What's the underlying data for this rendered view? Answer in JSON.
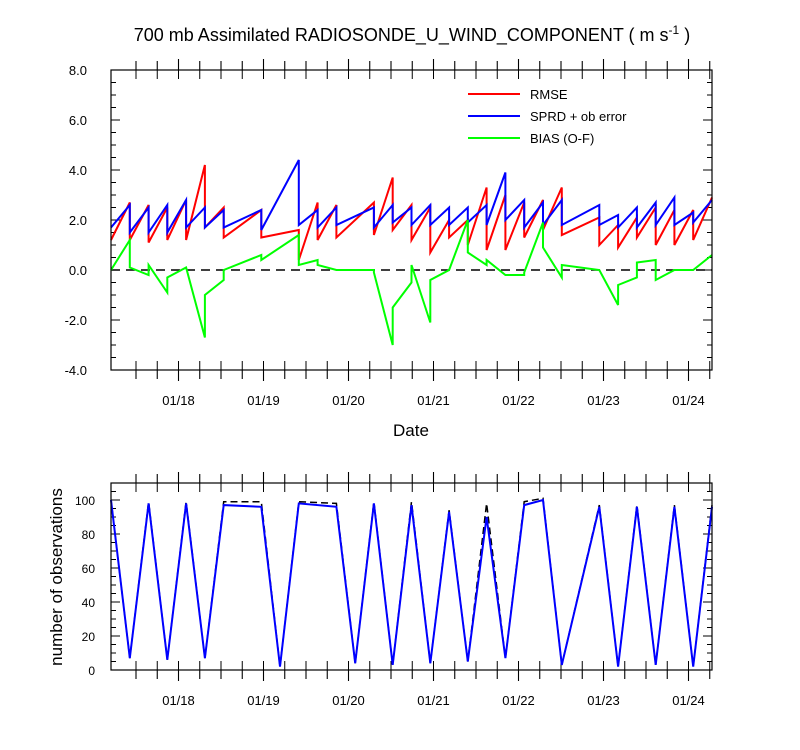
{
  "chart_data": [
    {
      "type": "line",
      "title_main": "700 mb Assimilated RADIOSONDE_U_WIND_COMPONENT ( m s",
      "title_sup": "-1",
      "title_end": " )",
      "xlabel": "Date",
      "ylabel": "",
      "ylim": [
        -4.0,
        8.0
      ],
      "y_tick_labels": [
        "-4.0",
        "-2.0",
        "0.0",
        "2.0",
        "4.0",
        "6.0",
        "8.0"
      ],
      "x_tick_labels": [
        "01/18",
        "01/19",
        "01/20",
        "01/21",
        "01/22",
        "01/23",
        "01/24"
      ],
      "legend_position": "top-right",
      "reference_line": 0.0,
      "series": [
        {
          "name": "RMSE",
          "color": "#ff0000",
          "x": [
            0,
            0.25,
            0.25,
            0.5,
            0.5,
            0.75,
            0.75,
            1.0,
            1.0,
            1.25,
            1.25,
            1.5,
            1.5,
            2.0,
            2.0,
            2.5,
            2.5,
            2.75,
            2.75,
            3.0,
            3.0,
            3.5,
            3.5,
            3.75,
            3.75,
            4.0,
            4.0,
            4.25,
            4.25,
            4.5,
            4.5,
            4.75,
            4.75,
            5.0,
            5.0,
            5.25,
            5.25,
            5.5,
            5.5,
            5.75,
            5.75,
            6.0,
            6.0,
            6.5,
            6.5,
            6.75,
            6.75,
            7.0,
            7.0,
            7.25,
            7.25,
            7.5,
            7.5,
            7.75,
            7.75,
            8.0
          ],
          "y": [
            1.2,
            2.7,
            1.2,
            2.6,
            1.1,
            2.5,
            1.2,
            2.8,
            1.2,
            4.2,
            1.7,
            2.5,
            1.3,
            2.4,
            1.3,
            1.6,
            0.4,
            2.7,
            1.2,
            2.6,
            1.3,
            2.7,
            1.4,
            3.7,
            1.6,
            2.6,
            1.2,
            2.5,
            0.7,
            2.0,
            1.3,
            2.0,
            1.0,
            3.3,
            0.8,
            3.0,
            0.8,
            2.7,
            1.3,
            2.8,
            1.6,
            3.3,
            1.4,
            2.1,
            1.0,
            1.8,
            0.9,
            2.1,
            1.3,
            2.5,
            1.0,
            2.4,
            1.0,
            2.4,
            1.2,
            2.9
          ]
        },
        {
          "name": "SPRD + ob error",
          "color": "#0000ff",
          "x": [
            0,
            0.25,
            0.25,
            0.5,
            0.5,
            0.75,
            0.75,
            1.0,
            1.0,
            1.25,
            1.25,
            1.5,
            1.5,
            2.0,
            2.0,
            2.5,
            2.5,
            2.75,
            2.75,
            3.0,
            3.0,
            3.5,
            3.5,
            3.75,
            3.75,
            4.0,
            4.0,
            4.25,
            4.25,
            4.5,
            4.5,
            4.75,
            4.75,
            5.0,
            5.0,
            5.25,
            5.25,
            5.5,
            5.5,
            5.75,
            5.75,
            6.0,
            6.0,
            6.5,
            6.5,
            6.75,
            6.75,
            7.0,
            7.0,
            7.25,
            7.25,
            7.5,
            7.5,
            7.75,
            7.75,
            8.0
          ],
          "y": [
            1.7,
            2.6,
            1.5,
            2.5,
            1.5,
            2.6,
            1.5,
            2.8,
            1.7,
            2.5,
            1.7,
            2.4,
            1.7,
            2.4,
            1.6,
            4.4,
            1.8,
            2.4,
            1.7,
            2.5,
            1.8,
            2.5,
            1.7,
            2.6,
            1.9,
            2.5,
            1.8,
            2.6,
            1.8,
            2.5,
            1.8,
            2.5,
            1.9,
            2.6,
            1.8,
            3.9,
            2.0,
            2.8,
            1.7,
            2.7,
            1.8,
            2.8,
            1.8,
            2.6,
            1.8,
            2.2,
            1.7,
            2.5,
            1.7,
            2.7,
            1.8,
            2.9,
            1.8,
            2.3,
            1.9,
            2.8
          ]
        },
        {
          "name": "BIAS (O-F)",
          "color": "#00ff00",
          "x": [
            0,
            0.25,
            0.25,
            0.5,
            0.5,
            0.75,
            0.75,
            1.0,
            1.0,
            1.25,
            1.25,
            1.5,
            1.5,
            2.0,
            2.0,
            2.5,
            2.5,
            2.75,
            2.75,
            3.0,
            3.0,
            3.5,
            3.5,
            3.75,
            3.75,
            4.0,
            4.0,
            4.25,
            4.25,
            4.5,
            4.5,
            4.75,
            4.75,
            5.0,
            5.0,
            5.25,
            5.25,
            5.5,
            5.5,
            5.75,
            5.75,
            6.0,
            6.0,
            6.5,
            6.5,
            6.75,
            6.75,
            7.0,
            7.0,
            7.25,
            7.25,
            7.5,
            7.5,
            7.75,
            7.75,
            8.0
          ],
          "y": [
            0.0,
            1.2,
            0.1,
            -0.2,
            0.2,
            -0.9,
            -0.3,
            0.1,
            0.1,
            -2.7,
            -1.0,
            -0.4,
            0.0,
            0.6,
            0.4,
            1.4,
            0.2,
            0.4,
            0.2,
            0.0,
            0.0,
            0.0,
            -0.1,
            -3.0,
            -1.5,
            -0.5,
            0.2,
            -2.1,
            -0.4,
            0.0,
            0.0,
            2.0,
            0.7,
            0.2,
            0.4,
            -0.2,
            -0.2,
            -0.2,
            -0.1,
            1.9,
            0.9,
            -0.3,
            0.2,
            0.0,
            0.0,
            -1.4,
            -0.6,
            -0.3,
            0.3,
            0.4,
            -0.4,
            0.0,
            0.0,
            0.0,
            0.0,
            0.6
          ]
        }
      ]
    },
    {
      "type": "line",
      "ylabel": "number of observations",
      "xlabel": "",
      "ylim": [
        0,
        110
      ],
      "y_tick_labels": [
        "0",
        "20",
        "40",
        "60",
        "80",
        "100"
      ],
      "x_tick_labels": [
        "01/18",
        "01/19",
        "01/20",
        "01/21",
        "01/22",
        "01/23",
        "01/24"
      ],
      "series": [
        {
          "style": "dashed",
          "color": "#000000",
          "x": [
            0,
            0.25,
            0.5,
            0.75,
            1.0,
            1.25,
            1.5,
            2.0,
            2.25,
            2.5,
            3.0,
            3.25,
            3.5,
            3.75,
            4.0,
            4.25,
            4.5,
            4.75,
            5.0,
            5.25,
            5.5,
            5.75,
            6.0,
            6.5,
            6.75,
            7.0,
            7.25,
            7.5,
            7.75,
            8.0
          ],
          "y": [
            100,
            7,
            99,
            6,
            99,
            7,
            99,
            99,
            2,
            99,
            98,
            4,
            99,
            3,
            99,
            4,
            94,
            5,
            98,
            7,
            99,
            101,
            3,
            97,
            2,
            97,
            3,
            97,
            2,
            97
          ]
        },
        {
          "style": "solid",
          "color": "#0000ff",
          "x": [
            0,
            0.25,
            0.5,
            0.75,
            1.0,
            1.25,
            1.5,
            2.0,
            2.25,
            2.5,
            3.0,
            3.25,
            3.5,
            3.75,
            4.0,
            4.25,
            4.5,
            4.75,
            5.0,
            5.25,
            5.5,
            5.75,
            6.0,
            6.5,
            6.75,
            7.0,
            7.25,
            7.5,
            7.75,
            8.0
          ],
          "y": [
            100,
            7,
            98,
            6,
            98,
            7,
            97,
            96,
            2,
            98,
            96,
            4,
            98,
            3,
            97,
            4,
            93,
            5,
            90,
            7,
            97,
            100,
            3,
            96,
            2,
            96,
            3,
            96,
            2,
            96
          ]
        }
      ]
    }
  ]
}
